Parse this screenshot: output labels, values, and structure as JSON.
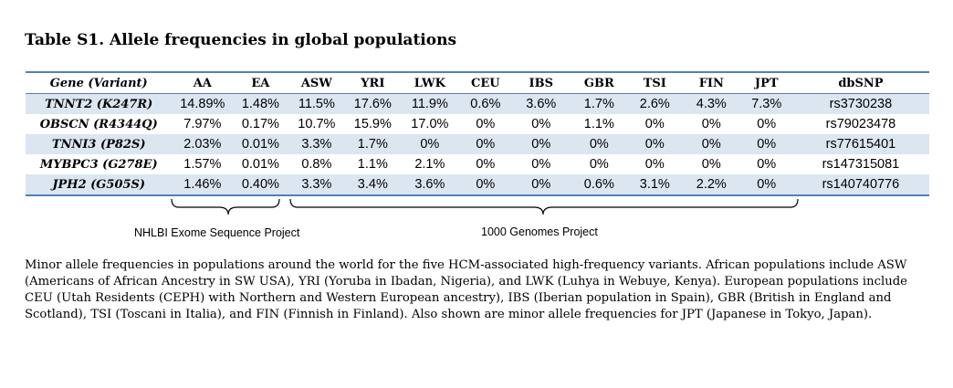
{
  "title": "Table S1. Allele frequencies in global populations",
  "table": {
    "headers": [
      "Gene (Variant)",
      "AA",
      "EA",
      "ASW",
      "YRI",
      "LWK",
      "CEU",
      "IBS",
      "GBR",
      "TSI",
      "FIN",
      "JPT",
      "dbSNP"
    ],
    "rows": [
      [
        "TNNT2 (K247R)",
        "14.89%",
        "1.48%",
        "11.5%",
        "17.6%",
        "11.9%",
        "0.6%",
        "3.6%",
        "1.7%",
        "2.6%",
        "4.3%",
        "7.3%",
        "rs3730238"
      ],
      [
        "OBSCN (R4344Q)",
        "7.97%",
        "0.17%",
        "10.7%",
        "15.9%",
        "17.0%",
        "0%",
        "0%",
        "1.1%",
        "0%",
        "0%",
        "0%",
        "rs79023478"
      ],
      [
        "TNNI3 (P82S)",
        "2.03%",
        "0.01%",
        "3.3%",
        "1.7%",
        "0%",
        "0%",
        "0%",
        "0%",
        "0%",
        "0%",
        "0%",
        "rs77615401"
      ],
      [
        "MYBPC3 (G278E)",
        "1.57%",
        "0.01%",
        "0.8%",
        "1.1%",
        "2.1%",
        "0%",
        "0%",
        "0%",
        "0%",
        "0%",
        "0%",
        "rs147315081"
      ],
      [
        "JPH2 (G505S)",
        "1.46%",
        "0.40%",
        "3.3%",
        "3.4%",
        "3.6%",
        "0%",
        "0%",
        "0.6%",
        "3.1%",
        "2.2%",
        "0%",
        "rs140740776"
      ]
    ]
  },
  "braces": {
    "nhlbi_label": "NHLBI Exome Sequence Project",
    "kg_label": "1000 Genomes Project"
  },
  "caption": "Minor allele frequencies in populations around the world for the five HCM-associated high-frequency variants. African populations include ASW (Americans of African Ancestry in SW USA), YRI (Yoruba in Ibadan, Nigeria), and LWK (Luhya in Webuye, Kenya). European populations include CEU (Utah Residents (CEPH) with Northern and Western European ancestry), IBS (Iberian population in Spain), GBR (British in England and Scotland), TSI (Toscani in Italia), and FIN (Finnish in Finland). Also shown are minor allele frequencies for JPT (Japanese in Tokyo, Japan)."
}
